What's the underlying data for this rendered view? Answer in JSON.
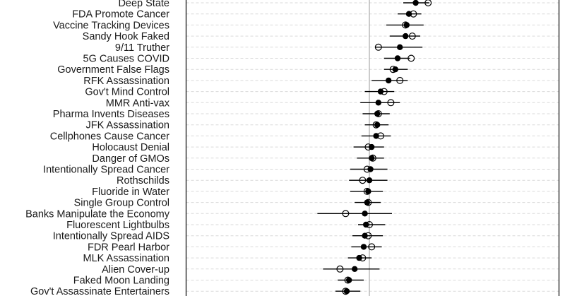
{
  "chart_data": {
    "type": "scatter",
    "title": "",
    "xlabel": "",
    "ylabel": "",
    "xlim": [
      -0.62,
      1.0
    ],
    "reference_line_x": 0,
    "grid": "horizontal-dashed",
    "categories": [
      "Deep State",
      "FDA Promote Cancer",
      "Vaccine Tracking Devices",
      "Sandy Hook Faked",
      "9/11 Truther",
      "5G Causes COVID",
      "Government False Flags",
      "RFK Assassination",
      "Gov't Mind Control",
      "MMR Anti-vax",
      "Pharma Invents Diseases",
      "JFK Assassination",
      "Cellphones Cause Cancer",
      "Holocaust Denial",
      "Danger of GMOs",
      "Intentionally Spread Cancer",
      "Rothschilds",
      "Fluoride in Water",
      "Single Group Control",
      "Banks Manipulate the Economy",
      "Fluorescent Lightbulbs",
      "Intentionally Spread AIDS",
      "FDR Pearl Harbor",
      "MLK Assassination",
      "Alien Cover-up",
      "Faked Moon Landing",
      "Gov't Assassinate Entertainers"
    ],
    "series": [
      {
        "marker": "filled",
        "values": [
          0.41,
          0.35,
          0.33,
          0.32,
          0.27,
          0.25,
          0.23,
          0.17,
          0.1,
          0.08,
          0.07,
          0.07,
          0.06,
          0.02,
          0.02,
          0.01,
          0.0,
          -0.01,
          -0.02,
          -0.04,
          -0.03,
          -0.04,
          -0.05,
          -0.09,
          -0.13,
          -0.18,
          -0.2
        ],
        "ci_low": [
          0.3,
          0.25,
          0.15,
          0.18,
          0.05,
          0.13,
          0.13,
          0.02,
          -0.04,
          -0.08,
          -0.06,
          -0.04,
          -0.07,
          -0.14,
          -0.11,
          -0.17,
          -0.18,
          -0.17,
          -0.13,
          -0.46,
          -0.1,
          -0.15,
          -0.16,
          -0.19,
          -0.41,
          -0.28,
          -0.3
        ],
        "ci_high": [
          0.53,
          0.46,
          0.48,
          0.45,
          0.47,
          0.36,
          0.34,
          0.34,
          0.22,
          0.27,
          0.18,
          0.17,
          0.19,
          0.13,
          0.13,
          0.16,
          0.16,
          0.12,
          0.1,
          0.2,
          0.14,
          0.12,
          0.11,
          0.02,
          0.09,
          -0.05,
          -0.08
        ]
      },
      {
        "marker": "hollow",
        "values": [
          0.52,
          0.39,
          0.32,
          0.38,
          0.08,
          0.37,
          0.21,
          0.27,
          0.13,
          0.19,
          0.08,
          0.06,
          0.1,
          -0.01,
          0.03,
          -0.02,
          -0.06,
          -0.02,
          -0.01,
          -0.21,
          0.0,
          -0.01,
          0.02,
          -0.06,
          -0.26,
          -0.19,
          -0.21
        ]
      }
    ]
  }
}
